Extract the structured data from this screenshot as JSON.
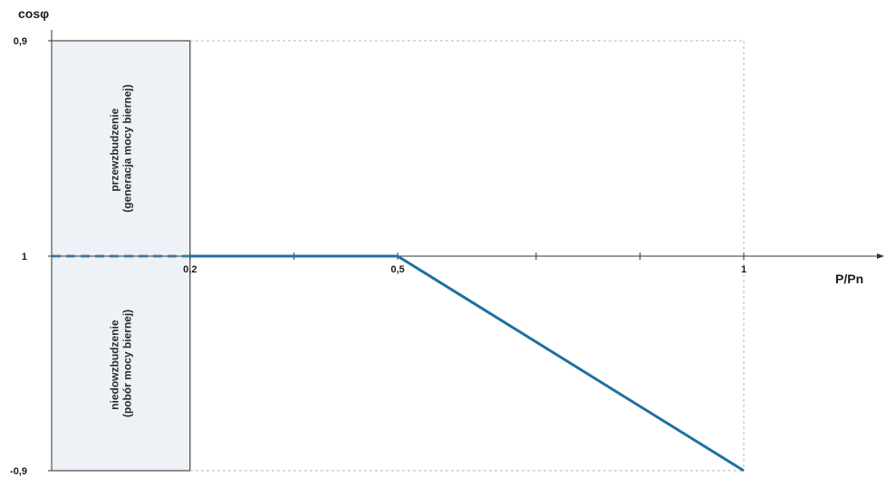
{
  "chart_data": {
    "type": "line",
    "ylabel": "cosφ",
    "xlabel": "P/Pn",
    "x_ticks": [
      {
        "value": 0.2,
        "label": "0,2"
      },
      {
        "value": 0.5,
        "label": "0,5"
      },
      {
        "value": 1,
        "label": "1"
      }
    ],
    "x_minor_ticks": [
      0.35,
      0.7,
      0.85
    ],
    "y_ticks": [
      {
        "value": 0.9,
        "label": "0,9"
      },
      {
        "value": 1,
        "label": "1"
      },
      {
        "value": -0.9,
        "label": "-0,9"
      }
    ],
    "series": [
      {
        "points": [
          {
            "x": 0,
            "y": 1
          },
          {
            "x": 0.2,
            "y": 1
          },
          {
            "x": 0.5,
            "y": 1
          },
          {
            "x": 1,
            "y": -0.9
          }
        ],
        "dashed_segment": {
          "from_x": 0,
          "to_x": 0.2
        },
        "color": "#1f6fa3"
      }
    ],
    "shaded_region": {
      "x_from": 0,
      "x_to": 0.2,
      "fill": "#eef1f5",
      "upper_label": [
        "przewzbudzenie",
        "(generacja mocy biernej)"
      ],
      "lower_label": [
        "niedowzbudzenie",
        "(pobór mocy biernej)"
      ]
    },
    "reference_box": {
      "x_to": 1,
      "y_top": 0.9,
      "y_bottom": -0.9,
      "style": "dashed"
    },
    "grid": false
  }
}
